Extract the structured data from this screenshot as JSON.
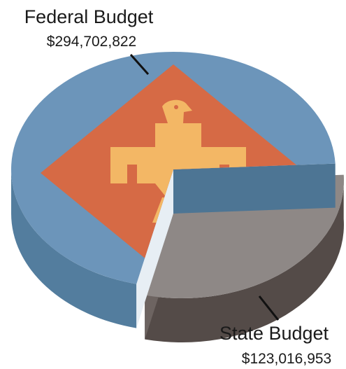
{
  "chart_data": {
    "type": "pie",
    "title": "",
    "slices": [
      {
        "label": "Federal Budget",
        "value": 294702822,
        "value_label": "$294,702,822",
        "color": "#6c95ba"
      },
      {
        "label": "State Budget",
        "value": 123016953,
        "value_label": "$123,016,953",
        "color": "#8e8886"
      }
    ],
    "style": "3d-exploded",
    "emblem": "thunderbird-diamond",
    "emblem_colors": {
      "diamond": "#d66a45",
      "bird": "#f3b765"
    }
  }
}
